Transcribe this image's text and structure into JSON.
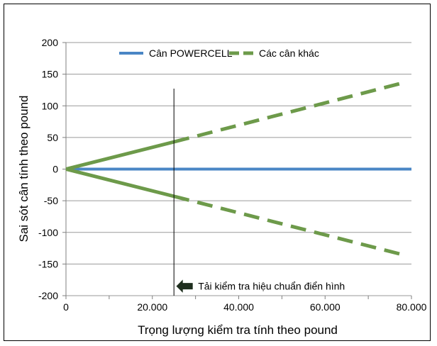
{
  "chart_data": {
    "type": "line",
    "xlabel": "Trọng lượng kiểm tra tính theo pound",
    "ylabel": "Sai sót cân tính theo pound",
    "xlim": [
      0,
      80000
    ],
    "ylim": [
      -200,
      200
    ],
    "x_ticks": [
      0,
      20000,
      40000,
      60000,
      80000
    ],
    "x_tick_labels": [
      "0",
      "20.000",
      "40.000",
      "60.000",
      "80.000"
    ],
    "y_ticks": [
      -200,
      -150,
      -100,
      -50,
      0,
      50,
      100,
      150,
      200
    ],
    "y_tick_labels": [
      "-200",
      "-150",
      "-100",
      "-50",
      "0",
      "50",
      "100",
      "150",
      "200"
    ],
    "grid": "horizontal",
    "legend_position": "top",
    "legend": [
      {
        "label": "Cân POWERCELL",
        "color": "#4a86c5",
        "style": "solid"
      },
      {
        "label": "Các cân khác",
        "color": "#6d9a4a",
        "style": "dashed"
      }
    ],
    "series": [
      {
        "name": "Cân POWERCELL",
        "color": "#4a86c5",
        "segments": [
          {
            "style": "solid",
            "points": [
              [
                0,
                0
              ],
              [
                80000,
                0
              ]
            ]
          }
        ]
      },
      {
        "name": "Các cân khác",
        "color": "#6d9a4a",
        "segments": [
          {
            "style": "solid",
            "points": [
              [
                0,
                0
              ],
              [
                25000,
                43
              ]
            ]
          },
          {
            "style": "dashed",
            "points": [
              [
                25000,
                43
              ],
              [
                79000,
                138
              ]
            ]
          }
        ]
      },
      {
        "name": "Các cân khác",
        "color": "#6d9a4a",
        "segments": [
          {
            "style": "solid",
            "points": [
              [
                0,
                0
              ],
              [
                25000,
                -43
              ]
            ]
          },
          {
            "style": "dashed",
            "points": [
              [
                25000,
                -43
              ],
              [
                79000,
                -137
              ]
            ]
          }
        ]
      }
    ],
    "reference_line": {
      "x": 25000
    },
    "annotation": {
      "text": "Tải kiểm tra hiệu chuẩn điển hình",
      "x": 25000,
      "y": -185,
      "icon": "left-arrow-icon"
    }
  }
}
